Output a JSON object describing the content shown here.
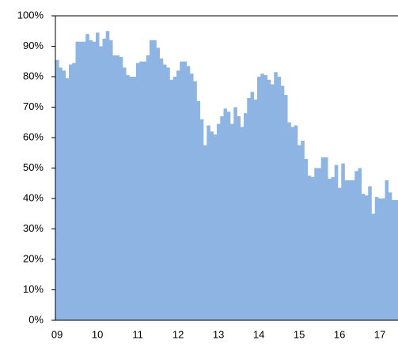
{
  "chart_data": {
    "type": "bar",
    "color": "#8eb4e3",
    "categories": [
      "09",
      null,
      null,
      null,
      null,
      null,
      null,
      null,
      null,
      null,
      null,
      null,
      "10",
      null,
      null,
      null,
      null,
      null,
      null,
      null,
      null,
      null,
      null,
      null,
      "11",
      null,
      null,
      null,
      null,
      null,
      null,
      null,
      null,
      null,
      null,
      null,
      "12",
      null,
      null,
      null,
      null,
      null,
      null,
      null,
      null,
      null,
      null,
      null,
      "13",
      null,
      null,
      null,
      null,
      null,
      null,
      null,
      null,
      null,
      null,
      null,
      "14",
      null,
      null,
      null,
      null,
      null,
      null,
      null,
      null,
      null,
      null,
      null,
      "15",
      null,
      null,
      null,
      null,
      null,
      null,
      null,
      null,
      null,
      null,
      null,
      "16",
      null,
      null,
      null,
      null,
      null,
      null,
      null,
      null,
      null,
      null,
      null,
      "17",
      null,
      null,
      null,
      null,
      null
    ],
    "values": [
      85.5,
      83,
      82,
      79.5,
      84,
      84.5,
      91.5,
      91.5,
      91.5,
      94,
      92,
      91.5,
      94.5,
      90,
      92.5,
      95,
      92,
      87,
      87,
      86.5,
      83,
      80.5,
      80,
      80,
      84.5,
      85,
      85,
      87,
      92,
      92,
      89.5,
      86,
      84,
      83,
      79,
      80,
      82,
      85,
      85,
      83.5,
      81,
      78.5,
      72,
      66,
      57.5,
      64,
      62,
      61,
      64.5,
      67,
      69.5,
      68.5,
      64.5,
      70,
      67,
      63.5,
      68,
      73,
      75,
      72.5,
      80,
      81,
      80.5,
      79,
      77.5,
      81.5,
      80,
      77,
      74,
      65,
      63.5,
      64,
      57.5,
      59,
      53,
      47.5,
      47,
      50,
      50,
      53.5,
      53.5,
      46.5,
      47,
      51,
      43.5,
      51.5,
      46,
      46,
      46,
      49,
      50,
      41.5,
      41,
      44,
      35,
      40.5,
      40,
      40,
      46,
      42,
      39.5,
      39.5
    ],
    "ylim": [
      0,
      100
    ],
    "yticks": [
      {
        "value": 0,
        "label": "0%"
      },
      {
        "value": 10,
        "label": "10%"
      },
      {
        "value": 20,
        "label": "20%"
      },
      {
        "value": 30,
        "label": "30%"
      },
      {
        "value": 40,
        "label": "40%"
      },
      {
        "value": 50,
        "label": "50%"
      },
      {
        "value": 60,
        "label": "60%"
      },
      {
        "value": 70,
        "label": "70%"
      },
      {
        "value": 80,
        "label": "80%"
      },
      {
        "value": 90,
        "label": "90%"
      },
      {
        "value": 100,
        "label": "100%"
      }
    ]
  }
}
